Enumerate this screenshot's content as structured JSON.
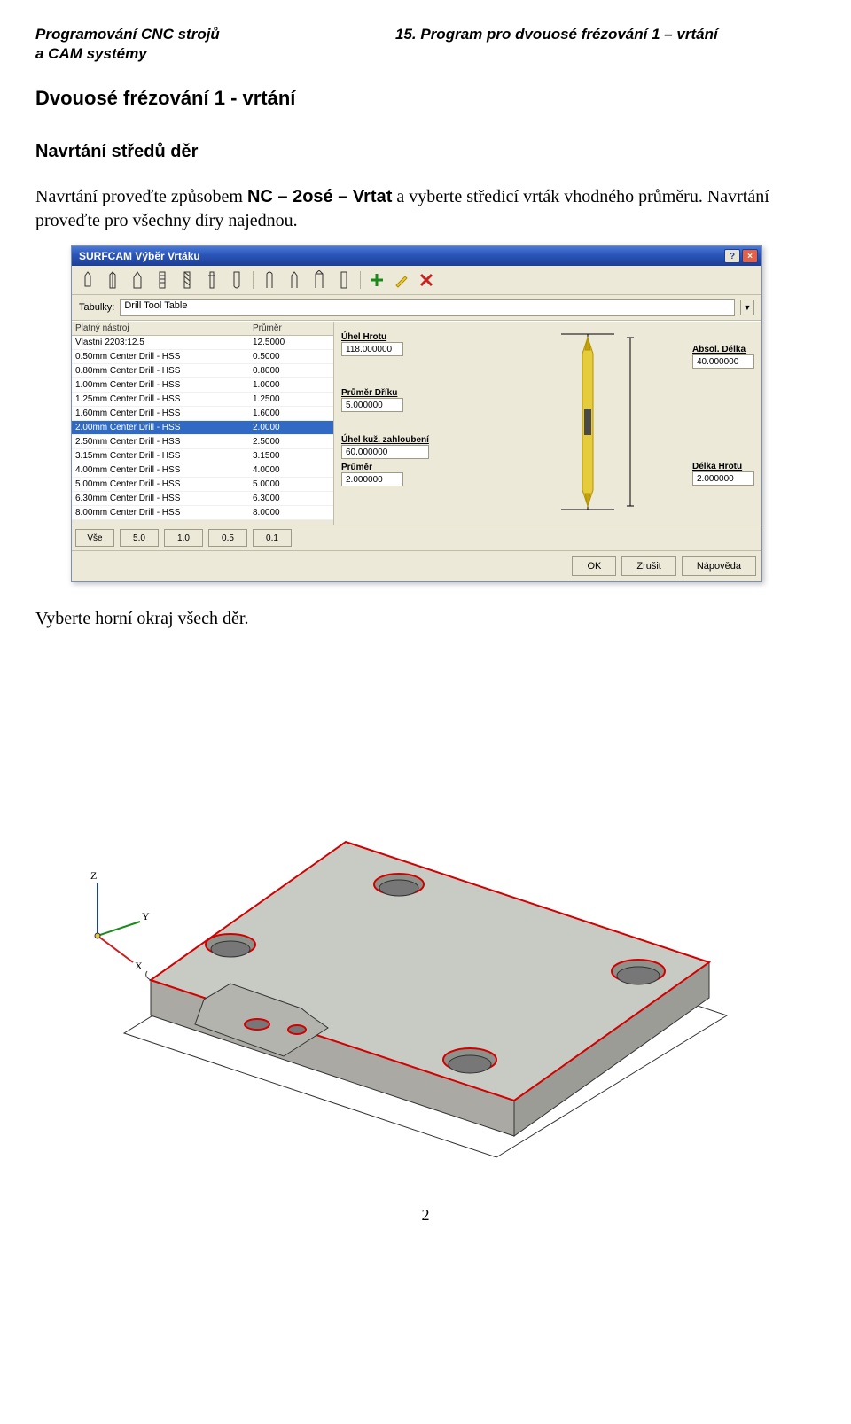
{
  "header": {
    "left_line1": "Programování CNC strojů",
    "left_line2": "a CAM systémy",
    "right": "15. Program pro dvouosé frézování 1 – vrtání"
  },
  "section_title": "Dvouosé frézování 1 - vrtání",
  "sub_title": "Navrtání středů děr",
  "body": {
    "pre": "Navrtání proveďte způsobem ",
    "nc": "NC – 2osé – Vrtat",
    "post": " a vyberte středicí vrták vhodného průměru. Navrtání proveďte pro všechny díry najednou."
  },
  "dialog": {
    "title": "SURFCAM Výběr Vrtáku",
    "tables_label": "Tabulky:",
    "tables_value": "Drill Tool Table",
    "list": {
      "col_name_header": "Platný nástroj",
      "col_dia_header": "Průměr",
      "rows": [
        {
          "name": "Vlastní 2203:12.5",
          "dia": "12.5000"
        },
        {
          "name": "0.50mm  Center Drill - HSS",
          "dia": "0.5000"
        },
        {
          "name": "0.80mm  Center Drill - HSS",
          "dia": "0.8000"
        },
        {
          "name": "1.00mm  Center Drill - HSS",
          "dia": "1.0000"
        },
        {
          "name": "1.25mm  Center Drill - HSS",
          "dia": "1.2500"
        },
        {
          "name": "1.60mm  Center Drill - HSS",
          "dia": "1.6000"
        },
        {
          "name": "2.00mm  Center Drill - HSS",
          "dia": "2.0000"
        },
        {
          "name": "2.50mm  Center Drill - HSS",
          "dia": "2.5000"
        },
        {
          "name": "3.15mm  Center Drill - HSS",
          "dia": "3.1500"
        },
        {
          "name": "4.00mm  Center Drill - HSS",
          "dia": "4.0000"
        },
        {
          "name": "5.00mm  Center Drill - HSS",
          "dia": "5.0000"
        },
        {
          "name": "6.30mm  Center Drill - HSS",
          "dia": "6.3000"
        },
        {
          "name": "8.00mm  Center Drill - HSS",
          "dia": "8.0000"
        }
      ],
      "selected_index": 6
    },
    "dims": {
      "tip_angle_label": "Úhel Hrotu",
      "tip_angle_value": "118.000000",
      "shank_dia_label": "Průměr Dříku",
      "shank_dia_value": "5.000000",
      "cone_angle_label": "Úhel kuž. zahloubení",
      "cone_angle_value": "60.000000",
      "dia_label": "Průměr",
      "dia_value": "2.000000",
      "abs_len_label": "Absol. Délka",
      "abs_len_value": "40.000000",
      "tip_len_label": "Délka Hrotu",
      "tip_len_value": "2.000000"
    },
    "filters": [
      "Vše",
      "5.0",
      "1.0",
      "0.5",
      "0.1"
    ],
    "actions": {
      "ok": "OK",
      "cancel": "Zrušit",
      "help": "Nápověda"
    }
  },
  "caption_below": "Vyberte horní okraj všech děr.",
  "page_number": "2",
  "drill_colors": {
    "body": "#e4cc3a",
    "tip": "#c2a20f",
    "ring": "#b39400",
    "center": "#4a4a4a"
  },
  "cad": {
    "line_color": "#333333",
    "base_fill": "#bcbdb8",
    "top_fill": "#c8cac4",
    "edge_red": "#d40000",
    "hole_fill": "#8e908a",
    "axis_x": "#c62222",
    "axis_y": "#1b8a1b",
    "axis_z": "#1d3ea0"
  }
}
